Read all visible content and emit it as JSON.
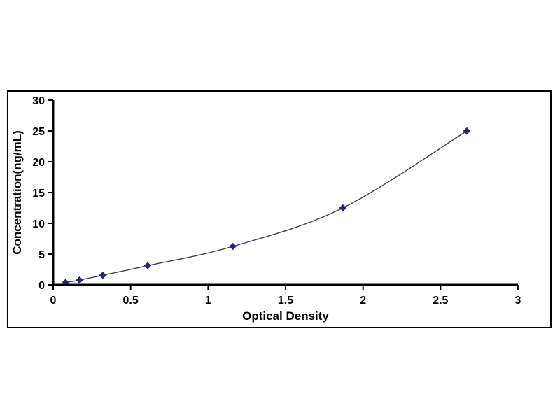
{
  "page": {
    "background": "#ffffff"
  },
  "chart_data": {
    "type": "scatter",
    "subtype": "scatter-with-smooth-line",
    "title": "",
    "xlabel": "Optical Density",
    "ylabel": "Concentration(ng/mL)",
    "x": [
      0.08,
      0.17,
      0.32,
      0.61,
      1.16,
      1.87,
      2.67
    ],
    "y": [
      0.39,
      0.78,
      1.56,
      3.12,
      6.25,
      12.5,
      25
    ],
    "xlim": [
      0,
      3
    ],
    "ylim": [
      0,
      30
    ],
    "xticks": [
      0,
      0.5,
      1,
      1.5,
      2,
      2.5,
      3
    ],
    "xtick_labels": [
      "0",
      "0.5",
      "1",
      "1.5",
      "2",
      "2.5",
      "3"
    ],
    "yticks": [
      0,
      5,
      10,
      15,
      20,
      25,
      30
    ],
    "ytick_labels": [
      "0",
      "5",
      "10",
      "15",
      "20",
      "25",
      "30"
    ],
    "marker": "diamond",
    "marker_color": "#26267d",
    "line_color": "#3c3c55",
    "axis_color": "#000000",
    "grid": false,
    "legend_position": "none"
  }
}
